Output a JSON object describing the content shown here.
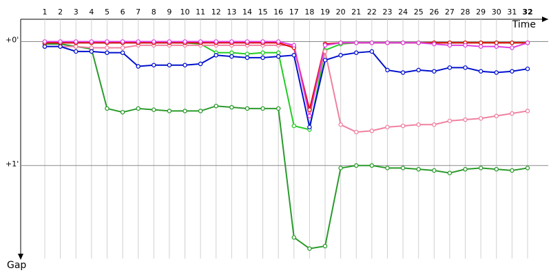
{
  "chart_data": {
    "type": "line",
    "x_label": "Time",
    "y_label": "Gap",
    "categories": [
      1,
      2,
      3,
      4,
      5,
      6,
      7,
      8,
      9,
      10,
      11,
      12,
      13,
      14,
      15,
      16,
      17,
      18,
      19,
      20,
      21,
      22,
      23,
      24,
      25,
      26,
      27,
      28,
      29,
      30,
      31,
      32
    ],
    "ylim": [
      -0.18,
      1.75
    ],
    "inverted": true,
    "grid": true,
    "yticks": [
      {
        "value": 0,
        "label": "+0'"
      },
      {
        "value": 1,
        "label": "+1'"
      }
    ],
    "series": [
      {
        "color": "#2a9a2a",
        "values": [
          0.02,
          0.02,
          0.04,
          0.06,
          0.54,
          0.57,
          0.54,
          0.55,
          0.56,
          0.56,
          0.56,
          0.52,
          0.53,
          0.54,
          0.54,
          0.54,
          1.58,
          1.67,
          1.65,
          1.02,
          1.0,
          1.0,
          1.02,
          1.02,
          1.03,
          1.04,
          1.06,
          1.03,
          1.02,
          1.03,
          1.04,
          1.02
        ]
      },
      {
        "color": "#22cc22",
        "values": [
          0.01,
          0.01,
          0.01,
          0.01,
          0.01,
          0.01,
          0.01,
          0.01,
          0.01,
          0.01,
          0.02,
          0.09,
          0.09,
          0.1,
          0.09,
          0.09,
          0.68,
          0.71,
          0.07,
          0.02,
          0.01,
          0.01,
          0.01,
          0.01,
          0.01,
          0.01,
          0.01,
          0.01,
          0.01,
          0.01,
          0.01,
          0.01
        ]
      },
      {
        "color": "#f080a0",
        "values": [
          0.04,
          0.04,
          0.04,
          0.05,
          0.05,
          0.05,
          0.03,
          0.03,
          0.03,
          0.03,
          0.03,
          0.03,
          0.03,
          0.03,
          0.03,
          0.03,
          0.03,
          0.56,
          0.08,
          0.67,
          0.73,
          0.72,
          0.69,
          0.68,
          0.67,
          0.67,
          0.64,
          0.63,
          0.62,
          0.6,
          0.58,
          0.56
        ]
      },
      {
        "color": "#0010cc",
        "values": [
          0.04,
          0.04,
          0.08,
          0.08,
          0.09,
          0.09,
          0.2,
          0.19,
          0.19,
          0.19,
          0.18,
          0.11,
          0.12,
          0.13,
          0.13,
          0.12,
          0.11,
          0.69,
          0.15,
          0.11,
          0.09,
          0.08,
          0.23,
          0.25,
          0.23,
          0.24,
          0.21,
          0.21,
          0.24,
          0.25,
          0.24,
          0.22
        ]
      },
      {
        "color": "#e00000",
        "values": [
          0.01,
          0.01,
          0.01,
          0.01,
          0.01,
          0.01,
          0.01,
          0.01,
          0.01,
          0.01,
          0.01,
          0.01,
          0.01,
          0.01,
          0.01,
          0.01,
          0.05,
          0.55,
          0.02,
          0.01,
          0.01,
          0.01,
          0.01,
          0.01,
          0.01,
          0.01,
          0.01,
          0.01,
          0.01,
          0.01,
          0.01,
          0.01
        ]
      },
      {
        "color": "#e040e0",
        "values": [
          0.0,
          0.0,
          0.0,
          0.0,
          0.0,
          0.0,
          0.0,
          0.0,
          0.0,
          0.0,
          0.0,
          0.0,
          0.0,
          0.0,
          0.0,
          0.0,
          0.03,
          0.6,
          0.03,
          0.01,
          0.01,
          0.01,
          0.01,
          0.01,
          0.01,
          0.02,
          0.03,
          0.03,
          0.04,
          0.04,
          0.05,
          0.01
        ]
      }
    ]
  }
}
